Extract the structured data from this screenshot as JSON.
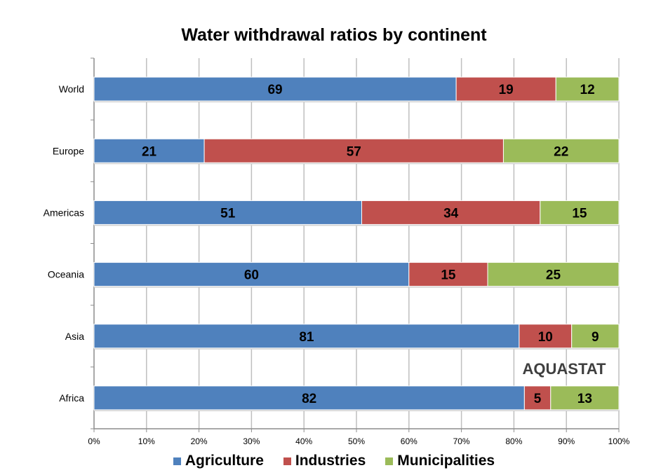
{
  "chart_data": {
    "type": "bar",
    "orientation": "horizontal",
    "stacked": true,
    "percent_stacked": true,
    "title": "Water withdrawal ratios by continent",
    "categories": [
      "World",
      "Europe",
      "Americas",
      "Oceania",
      "Asia",
      "Africa"
    ],
    "series": [
      {
        "name": "Agriculture",
        "color": "#4F81BD",
        "values": [
          69,
          21,
          51,
          60,
          81,
          82
        ]
      },
      {
        "name": "Industries",
        "color": "#C0504D",
        "values": [
          19,
          57,
          34,
          15,
          10,
          5
        ]
      },
      {
        "name": "Municipalities",
        "color": "#9BBB59",
        "values": [
          12,
          22,
          15,
          25,
          9,
          13
        ]
      }
    ],
    "xlim": [
      0,
      100
    ],
    "xticks": [
      "0%",
      "10%",
      "20%",
      "30%",
      "40%",
      "50%",
      "60%",
      "70%",
      "80%",
      "90%",
      "100%"
    ],
    "grid": "vertical",
    "legend": "bottom",
    "data_labels": true
  },
  "watermark": "AQUASTAT"
}
